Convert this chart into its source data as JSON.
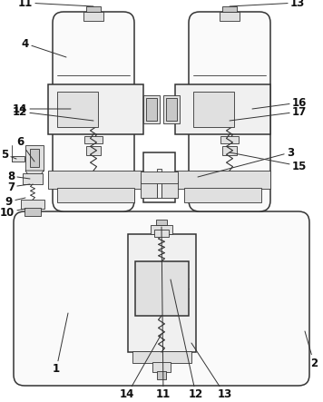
{
  "bg_color": "#ffffff",
  "line_color": "#333333",
  "label_color": "#111111",
  "figsize": [
    3.56,
    4.43
  ],
  "dpi": 100,
  "lw_main": 1.1,
  "lw_thin": 0.6,
  "lw_med": 0.85,
  "fc_outer": "#f0f0f0",
  "fc_inner": "#e0e0e0",
  "fc_dark": "#c8c8c8",
  "fc_white": "#fafafa"
}
